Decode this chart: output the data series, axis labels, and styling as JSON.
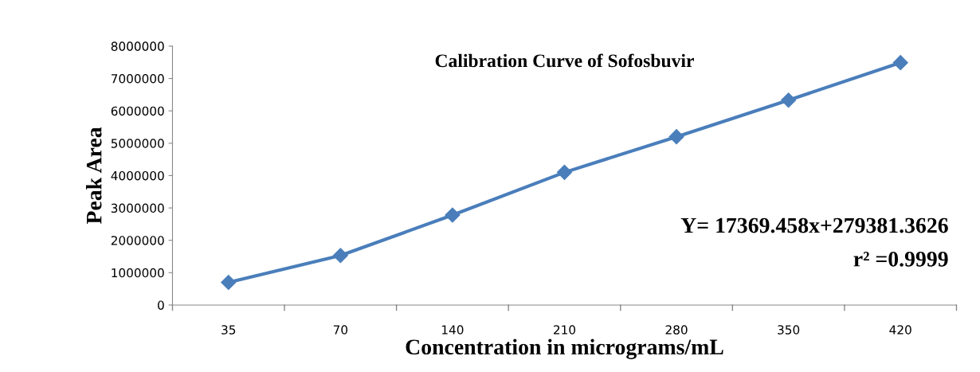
{
  "chart_data": {
    "type": "line",
    "title": "Calibration Curve of Sofosbuvir",
    "xlabel": "Concentration in micrograms/mL",
    "ylabel": "Peak Area",
    "categories": [
      "35",
      "70",
      "140",
      "210",
      "280",
      "350",
      "420"
    ],
    "series": [
      {
        "color": "#4a7ebb",
        "values": [
          700000,
          1530000,
          2780000,
          4100000,
          5200000,
          6330000,
          7490000
        ]
      }
    ],
    "ylim": [
      0,
      8000000
    ],
    "yticks": [
      0,
      1000000,
      2000000,
      3000000,
      4000000,
      5000000,
      6000000,
      7000000,
      8000000
    ],
    "marker": "diamond",
    "line_style": "solid",
    "grid": false,
    "legend": false,
    "annotations": [
      "Y= 17369.458x+279381.3626",
      "r² =0.9999"
    ]
  }
}
